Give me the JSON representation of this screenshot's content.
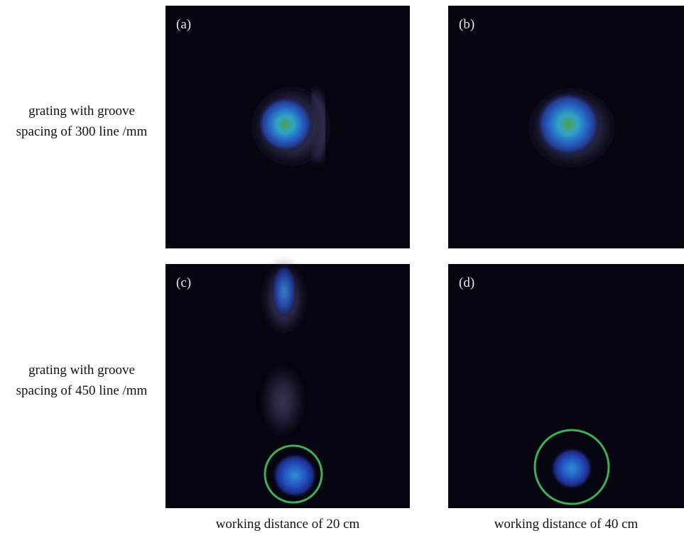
{
  "row_labels": [
    [
      "grating with groove",
      "spacing of 300 line /mm"
    ],
    [
      "grating with groove",
      "spacing of 450 line /mm"
    ]
  ],
  "panels": [
    "(a)",
    "(b)",
    "(c)",
    "(d)"
  ],
  "column_labels": [
    "working distance of 20 cm",
    "working distance of 40 cm"
  ]
}
